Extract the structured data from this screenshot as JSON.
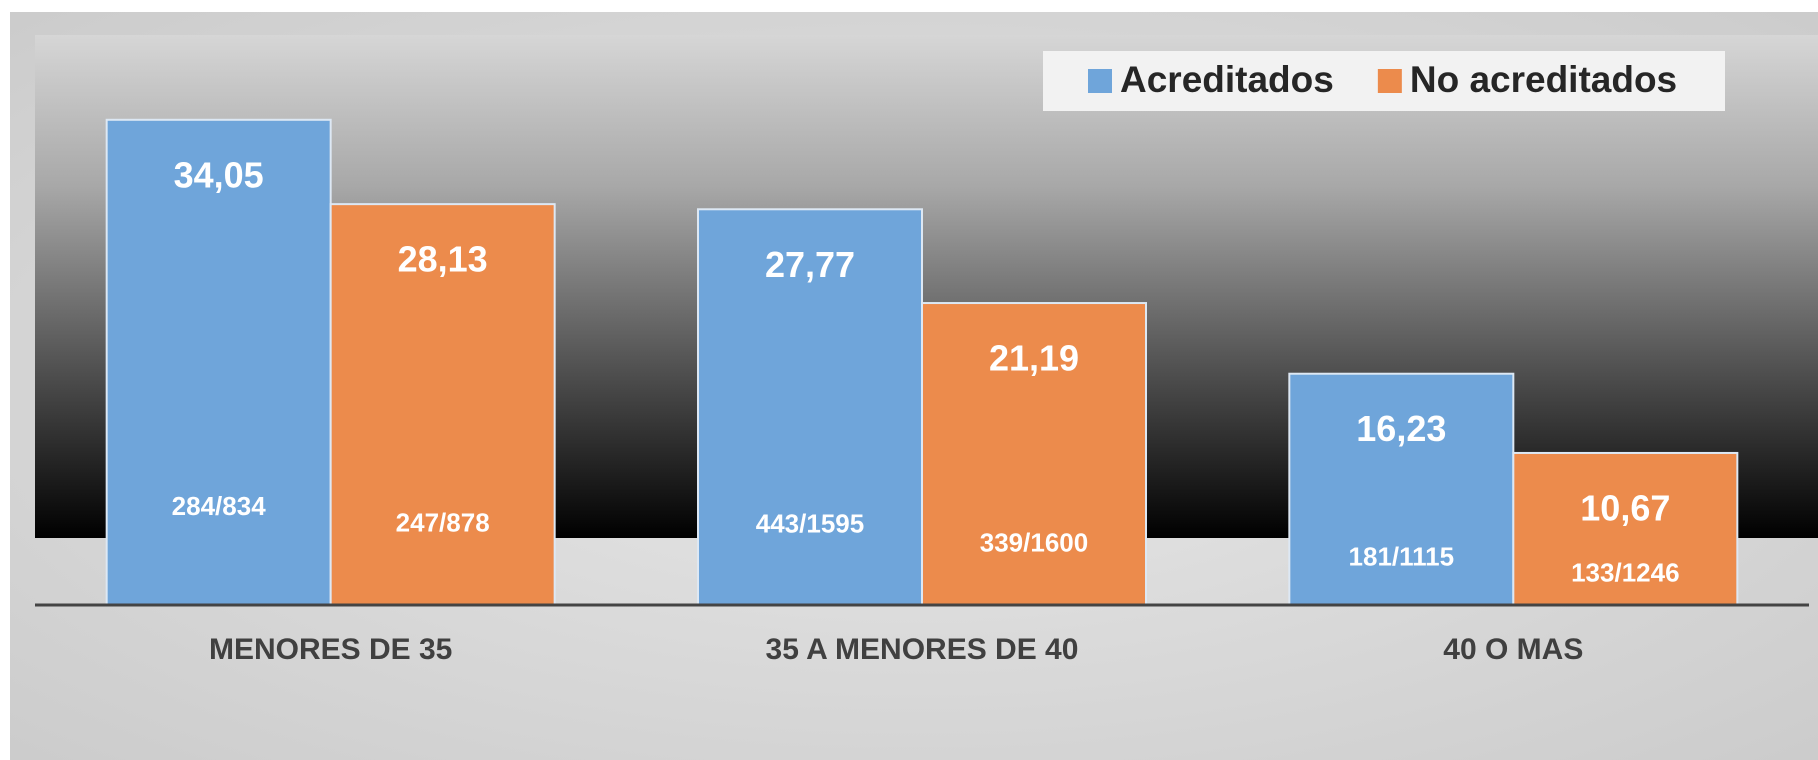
{
  "chart_data": {
    "type": "bar",
    "categories": [
      "MENORES DE 35",
      "35 A MENORES DE 40",
      "40 O MAS"
    ],
    "series": [
      {
        "name": "Acreditados",
        "color": "#6fa5da",
        "values": [
          34.05,
          27.77,
          16.23
        ],
        "value_labels": [
          "34,05",
          "27,77",
          "16,23"
        ],
        "fractions": [
          "284/834",
          "443/1595",
          "181/1115"
        ]
      },
      {
        "name": "No acreditados",
        "color": "#ec8b4c",
        "values": [
          28.13,
          21.19,
          10.67
        ],
        "value_labels": [
          "28,13",
          "21,19",
          "10,67"
        ],
        "fractions": [
          "247/878",
          "339/1600",
          "133/1246"
        ]
      }
    ],
    "ylim": [
      0,
      40
    ],
    "legend": "top-right"
  }
}
